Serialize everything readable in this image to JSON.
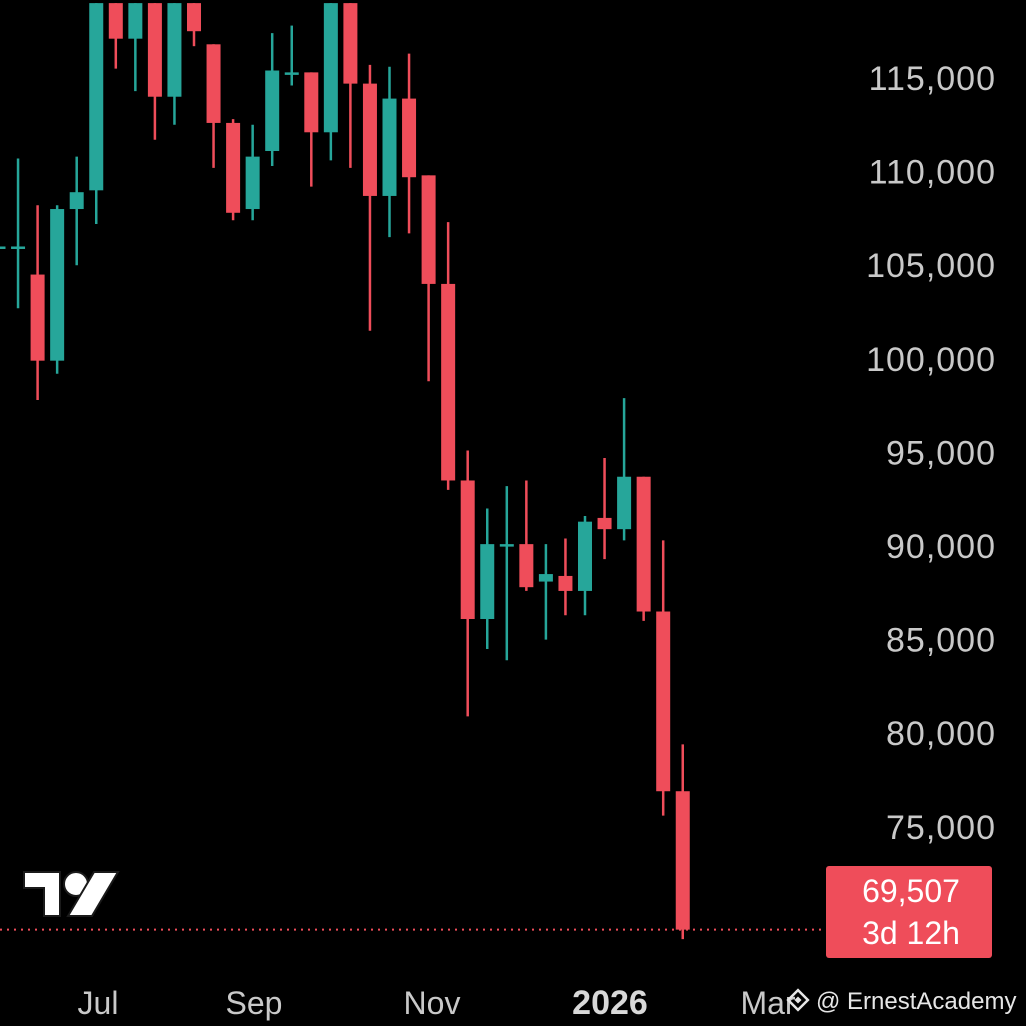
{
  "chart_data": {
    "type": "candlestick",
    "interval": "weekly",
    "colors": {
      "up": "#26a69a",
      "down": "#ef4d5a",
      "background": "#000000",
      "text": "#c9c9c9",
      "price_line": "#ef4d5a"
    },
    "y_axis": {
      "ticks": [
        "115,000",
        "110,000",
        "105,000",
        "100,000",
        "95,000",
        "90,000",
        "85,000",
        "80,000",
        "75,000"
      ],
      "tick_values": [
        115000,
        110000,
        105000,
        100000,
        95000,
        90000,
        85000,
        80000,
        75000
      ],
      "ylim": [
        67000,
        119000
      ]
    },
    "x_axis": {
      "ticks": [
        "Jul",
        "Sep",
        "Nov",
        "2026",
        "Mar"
      ],
      "bold_tick": "2026"
    },
    "candles": [
      {
        "o": 106000,
        "h": 107000,
        "l": 100500,
        "c": 106000
      },
      {
        "o": 106000,
        "h": 110700,
        "l": 102700,
        "c": 106000
      },
      {
        "o": 104500,
        "h": 108200,
        "l": 97800,
        "c": 99900
      },
      {
        "o": 99900,
        "h": 108200,
        "l": 99200,
        "c": 108000
      },
      {
        "o": 108000,
        "h": 110800,
        "l": 105000,
        "c": 108900
      },
      {
        "o": 109000,
        "h": 119000,
        "l": 107200,
        "c": 119000
      },
      {
        "o": 119000,
        "h": 119000,
        "l": 115500,
        "c": 117100
      },
      {
        "o": 117100,
        "h": 119000,
        "l": 114300,
        "c": 119000
      },
      {
        "o": 119000,
        "h": 119000,
        "l": 111700,
        "c": 114000
      },
      {
        "o": 114000,
        "h": 119000,
        "l": 112500,
        "c": 119000
      },
      {
        "o": 119000,
        "h": 119000,
        "l": 116700,
        "c": 117500
      },
      {
        "o": 116800,
        "h": 116800,
        "l": 110200,
        "c": 112600
      },
      {
        "o": 112600,
        "h": 112800,
        "l": 107400,
        "c": 107800
      },
      {
        "o": 108000,
        "h": 112500,
        "l": 107400,
        "c": 110800
      },
      {
        "o": 111100,
        "h": 117400,
        "l": 110300,
        "c": 115400
      },
      {
        "o": 115300,
        "h": 117800,
        "l": 114600,
        "c": 115300
      },
      {
        "o": 115300,
        "h": 115300,
        "l": 109200,
        "c": 112100
      },
      {
        "o": 112100,
        "h": 119000,
        "l": 110600,
        "c": 119000
      },
      {
        "o": 119000,
        "h": 119000,
        "l": 110200,
        "c": 114700
      },
      {
        "o": 114700,
        "h": 115700,
        "l": 101500,
        "c": 108700
      },
      {
        "o": 108700,
        "h": 115600,
        "l": 106500,
        "c": 113900
      },
      {
        "o": 113900,
        "h": 116300,
        "l": 106700,
        "c": 109700
      },
      {
        "o": 109800,
        "h": 109800,
        "l": 98800,
        "c": 104000
      },
      {
        "o": 104000,
        "h": 107300,
        "l": 93000,
        "c": 93500
      },
      {
        "o": 93500,
        "h": 95100,
        "l": 80900,
        "c": 86100
      },
      {
        "o": 86100,
        "h": 92000,
        "l": 84500,
        "c": 90100
      },
      {
        "o": 90100,
        "h": 93200,
        "l": 83900,
        "c": 90100
      },
      {
        "o": 90100,
        "h": 93500,
        "l": 87600,
        "c": 87800
      },
      {
        "o": 88100,
        "h": 90100,
        "l": 85000,
        "c": 88500
      },
      {
        "o": 88400,
        "h": 90400,
        "l": 86300,
        "c": 87600
      },
      {
        "o": 87600,
        "h": 91600,
        "l": 86300,
        "c": 91300
      },
      {
        "o": 91500,
        "h": 94700,
        "l": 89300,
        "c": 90900
      },
      {
        "o": 90900,
        "h": 97900,
        "l": 90300,
        "c": 93700
      },
      {
        "o": 93700,
        "h": 93700,
        "l": 86000,
        "c": 86500
      },
      {
        "o": 86500,
        "h": 90300,
        "l": 75600,
        "c": 76900
      },
      {
        "o": 76900,
        "h": 79400,
        "l": 69000,
        "c": 69507
      }
    ],
    "last_price": {
      "value": "69,507",
      "countdown": "3d 12h"
    }
  },
  "branding": {
    "logo_icon": "tradingview-logo-icon",
    "watermark_icon": "binance-icon",
    "watermark_text": "@ ErnestAcademy"
  }
}
